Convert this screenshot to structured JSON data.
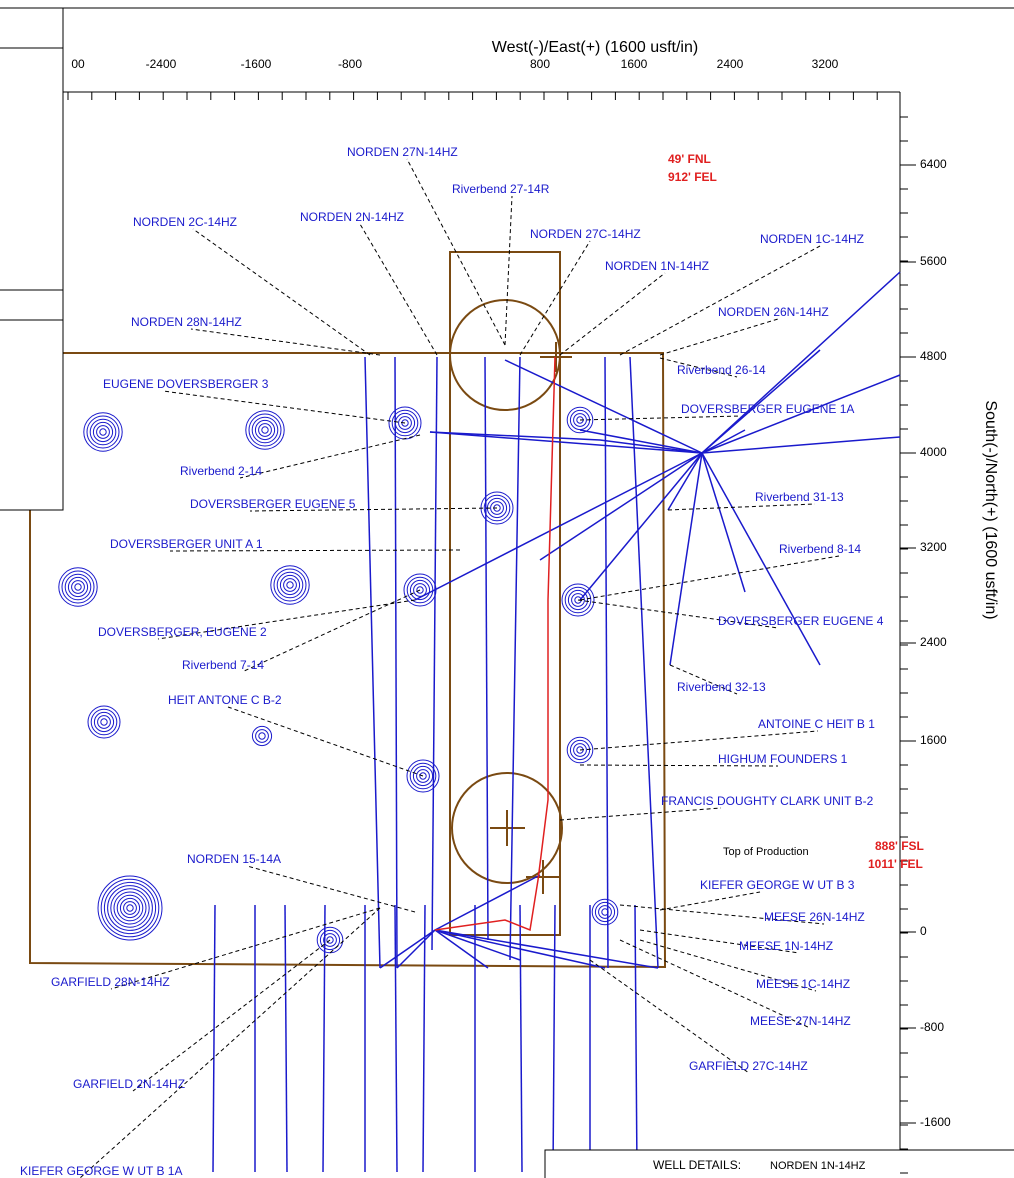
{
  "top_axis": {
    "title": "West(-)/East(+) (1600 usft/in)",
    "ticks": [
      "00",
      "-2400",
      "-1600",
      "-800",
      "800",
      "1600",
      "2400",
      "3200"
    ]
  },
  "right_axis": {
    "title": "South(-)/North(+) (1600 usft/in)",
    "ticks": [
      "6400",
      "5600",
      "4800",
      "4000",
      "3200",
      "2400",
      "1600",
      "0",
      "-800",
      "-1600"
    ]
  },
  "annotations": [
    "49' FNL",
    "912' FEL",
    "888' FSL",
    "1011' FEL",
    "Top of Production"
  ],
  "wells": [
    "NORDEN 27N-14HZ",
    "Riverbend 27-14R",
    "NORDEN 2C-14HZ",
    "NORDEN 2N-14HZ",
    "NORDEN 27C-14HZ",
    "NORDEN 1C-14HZ",
    "NORDEN 1N-14HZ",
    "NORDEN 26N-14HZ",
    "NORDEN 28N-14HZ",
    "Riverbend 26-14",
    "EUGENE DOVERSBERGER 3",
    "DOVERSBERGER EUGENE 1A",
    "Riverbend 2-14",
    "DOVERSBERGER EUGENE 5",
    "Riverbend 31-13",
    "DOVERSBERGER UNIT A 1",
    "Riverbend 8-14",
    "DOVERSBERGER, EUGENE 2",
    "DOVERSBERGER EUGENE 4",
    "Riverbend 7-14",
    "Riverbend 32-13",
    "HEIT ANTONE C B-2",
    "ANTOINE C HEIT B 1",
    "HIGHUM FOUNDERS 1",
    "FRANCIS DOUGHTY CLARK UNIT B-2",
    "NORDEN 15-14A",
    "KIEFER GEORGE W UT B 3",
    "MEESE 26N-14HZ",
    "MEESE 1N-14HZ",
    "MEESE 1C-14HZ",
    "GARFIELD 28N-14HZ",
    "MEESE 27N-14HZ",
    "GARFIELD 27C-14HZ",
    "GARFIELD 2N-14HZ",
    "KIEFER GEORGE W UT B 1A"
  ],
  "well_details": {
    "label": "WELL DETAILS:",
    "name": "NORDEN 1N-14HZ"
  }
}
